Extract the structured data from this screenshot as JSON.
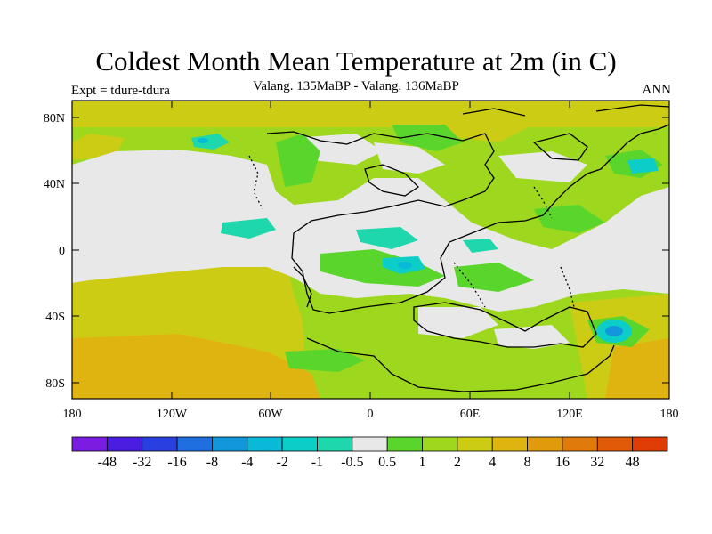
{
  "title": "Coldest Month Mean Temperature at 2m (in C)",
  "subtitle": "Valang.  135MaBP - Valang.  136MaBP",
  "left_label": "Expt = tdure-tdura",
  "right_label": "ANN",
  "map": {
    "lat_ticks": [
      "80N",
      "40N",
      "0",
      "40S",
      "80S"
    ],
    "lon_ticks": [
      "180",
      "120W",
      "60W",
      "0",
      "60E",
      "120E",
      "180"
    ]
  },
  "colorbar": {
    "colors": [
      "#7a1de0",
      "#4a1de0",
      "#2a3fe0",
      "#1f6fe0",
      "#1296dc",
      "#0ab8d8",
      "#0ccdc8",
      "#1ed7ad",
      "#e8e8e8",
      "#5ad52c",
      "#9ed81e",
      "#cccc14",
      "#e0b410",
      "#e09a0c",
      "#e07a0a",
      "#e05a08",
      "#e03c06"
    ],
    "labels": [
      "-48",
      "-32",
      "-16",
      "-8",
      "-4",
      "-2",
      "-1",
      "-0.5",
      "0.5",
      "1",
      "2",
      "4",
      "8",
      "16",
      "32",
      "48"
    ]
  }
}
